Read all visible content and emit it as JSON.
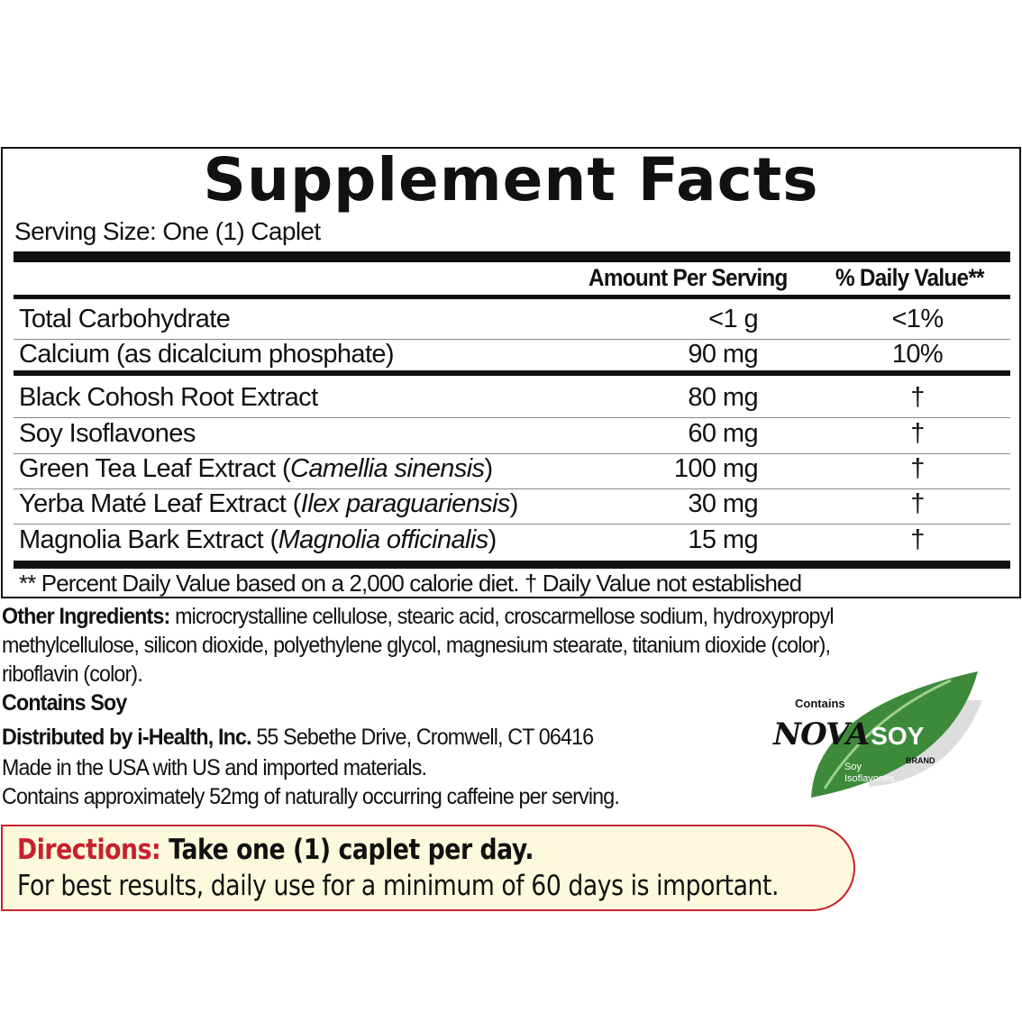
{
  "facts": {
    "title": "Supplement Facts",
    "serving_size": "Serving Size: One (1) Caplet",
    "col_amount": "Amount Per Serving",
    "col_dv": "% Daily Value**",
    "rows": [
      {
        "name": "Total Carbohydrate",
        "amount": "<1 g",
        "dv": "<1%"
      },
      {
        "name": "Calcium (as dicalcium phosphate)",
        "amount": "90 mg",
        "dv": "10%"
      },
      {
        "name": "Black Cohosh Root Extract",
        "amount": "80 mg",
        "dv": "†"
      },
      {
        "name": "Soy Isoflavones",
        "amount": "60 mg",
        "dv": "†"
      },
      {
        "name": "Green Tea Leaf Extract (",
        "latin": "Camellia sinensis",
        "close": ")",
        "amount": "100 mg",
        "dv": "†"
      },
      {
        "name": "Yerba Maté Leaf Extract (",
        "latin": "Ilex paraguariensis",
        "close": ")",
        "amount": "30 mg",
        "dv": "†"
      },
      {
        "name": "Magnolia Bark Extract (",
        "latin": "Magnolia officinalis",
        "close": ")",
        "amount": "15 mg",
        "dv": "†"
      }
    ],
    "footnote": "** Percent Daily Value based on a 2,000 calorie diet. † Daily Value not established"
  },
  "other": {
    "label": "Other Ingredients:",
    "line1": " microcrystalline cellulose, stearic acid, croscarmellose sodium, hydroxypropyl",
    "line2": "methylcellulose, silicon dioxide, polyethylene glycol, magnesium stearate, titanium dioxide (color),",
    "line3": "riboflavin (color).",
    "contains": "Contains Soy",
    "dist_label": "Distributed by i-Health, Inc.",
    "dist_addr": " 55 Sebethe Drive, Cromwell, CT 06416",
    "made": "Made in the USA with US and imported materials.",
    "caffeine": "Contains approximately 52mg of naturally occurring caffeine per serving."
  },
  "logo": {
    "contains": "Contains",
    "nova": "NOVA",
    "soy": "SOY",
    "brand": "BRAND",
    "sub1": "Soy",
    "sub2": "Isoflavones",
    "leaf_color": "#3d8a3a"
  },
  "directions": {
    "label": "Directions:",
    "line1": " Take one (1) caplet per day.",
    "line2": "For best results, daily use for a minimum of 60 days is important.",
    "label_color": "#c8202f"
  }
}
